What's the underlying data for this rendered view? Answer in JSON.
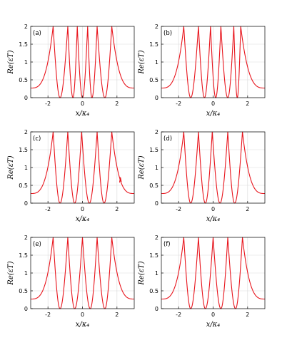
{
  "style": {
    "curve_color": "#e8141c",
    "axis_color": "#000000",
    "grid_color": "#d9d9d9"
  },
  "chart_data": [
    {
      "type": "line",
      "panel_label": "(a)",
      "xlabel": "x/κ₄",
      "ylabel": "Re(εT)",
      "xlim": [
        -3,
        3
      ],
      "ylim": [
        0,
        2
      ],
      "xticks": [
        -2,
        0,
        2
      ],
      "yticks": [
        0,
        0.5,
        1,
        1.5,
        2
      ],
      "xtick_labels": [
        "-2",
        "0",
        "2"
      ],
      "ytick_labels": [
        "0",
        "0.5",
        "1",
        "1.5",
        "2"
      ],
      "grid": true,
      "resonance_poles": [
        -1.7,
        -0.85,
        -0.3,
        0.3,
        0.85,
        1.7
      ],
      "zeros": [
        -1.3,
        -0.55,
        0.0,
        0.55,
        1.3
      ],
      "edge_values": {
        "x_min": 0.27,
        "x_max": 0.27
      }
    },
    {
      "type": "line",
      "panel_label": "(b)",
      "xlabel": "x/κ₄",
      "ylabel": "Re(εT)",
      "xlim": [
        -3,
        3
      ],
      "ylim": [
        0,
        2
      ],
      "xticks": [
        -2,
        0,
        2
      ],
      "yticks": [
        0,
        0.5,
        1,
        1.5,
        2
      ],
      "xtick_labels": [
        "-2",
        "0",
        "2"
      ],
      "ytick_labels": [
        "0",
        "0.5",
        "1",
        "1.5",
        "2"
      ],
      "grid": true,
      "resonance_poles": [
        -1.7,
        -0.85,
        -0.15,
        0.45,
        1.2,
        1.6
      ],
      "zeros": [
        -1.3,
        -0.5,
        0.15,
        0.85,
        1.4
      ],
      "edge_values": {
        "x_min": 0.27,
        "x_max": 0.27
      }
    },
    {
      "type": "line",
      "panel_label": "(c)",
      "xlabel": "x/κ₄",
      "ylabel": "Re(εT)",
      "xlim": [
        -3,
        3
      ],
      "ylim": [
        0,
        2
      ],
      "xticks": [
        -2,
        0,
        2
      ],
      "yticks": [
        0,
        0.5,
        1,
        1.5,
        2
      ],
      "xtick_labels": [
        "-2",
        "0",
        "2"
      ],
      "ytick_labels": [
        "0",
        "0.5",
        "1",
        "1.5",
        "2"
      ],
      "grid": true,
      "resonance_poles": [
        -1.7,
        -0.85,
        -0.05,
        0.85,
        1.7
      ],
      "zeros": [
        -1.3,
        -0.45,
        0.4,
        1.25
      ],
      "edge_values": {
        "x_min": 0.27,
        "x_max": 0.27
      },
      "annotations": [
        "glitch near x=2.2, Re≈0.65"
      ]
    },
    {
      "type": "line",
      "panel_label": "(d)",
      "xlabel": "x/κ₄",
      "ylabel": "Re(εT)",
      "xlim": [
        -3,
        3
      ],
      "ylim": [
        0,
        2
      ],
      "xticks": [
        -2,
        0,
        2
      ],
      "yticks": [
        0,
        0.5,
        1,
        1.5,
        2
      ],
      "xtick_labels": [
        "-2",
        "0",
        "2"
      ],
      "ytick_labels": [
        "0",
        "0.5",
        "1",
        "1.5",
        "2"
      ],
      "grid": true,
      "resonance_poles": [
        -1.7,
        -0.85,
        -0.05,
        0.85,
        1.7
      ],
      "zeros": [
        -1.3,
        -0.45,
        0.4,
        1.25
      ],
      "edge_values": {
        "x_min": 0.27,
        "x_max": 0.27
      }
    },
    {
      "type": "line",
      "panel_label": "(e)",
      "xlabel": "x/κ₄",
      "ylabel": "Re(εT)",
      "xlim": [
        -3,
        3
      ],
      "ylim": [
        0,
        2
      ],
      "xticks": [
        -2,
        0,
        2
      ],
      "yticks": [
        0,
        0.5,
        1,
        1.5,
        2
      ],
      "xtick_labels": [
        "-2",
        "0",
        "2"
      ],
      "ytick_labels": [
        "0",
        "0.5",
        "1",
        "1.5",
        "2"
      ],
      "grid": true,
      "resonance_poles": [
        -1.7,
        -0.85,
        0.0,
        0.85,
        1.7
      ],
      "zeros": [
        -1.3,
        -0.45,
        0.45,
        1.3
      ],
      "edge_values": {
        "x_min": 0.27,
        "x_max": 0.27
      }
    },
    {
      "type": "line",
      "panel_label": "(f)",
      "xlabel": "x/κ₄",
      "ylabel": "Re(εT)",
      "xlim": [
        -3,
        3
      ],
      "ylim": [
        0,
        2
      ],
      "xticks": [
        -2,
        0,
        2
      ],
      "yticks": [
        0,
        0.5,
        1,
        1.5,
        2
      ],
      "xtick_labels": [
        "-2",
        "0",
        "2"
      ],
      "ytick_labels": [
        "0",
        "0.5",
        "1",
        "1.5",
        "2"
      ],
      "grid": true,
      "resonance_poles": [
        -1.7,
        -0.85,
        0.0,
        0.85,
        1.7
      ],
      "zeros": [
        -1.3,
        -0.45,
        0.45,
        1.3
      ],
      "edge_values": {
        "x_min": 0.27,
        "x_max": 0.27
      }
    }
  ]
}
